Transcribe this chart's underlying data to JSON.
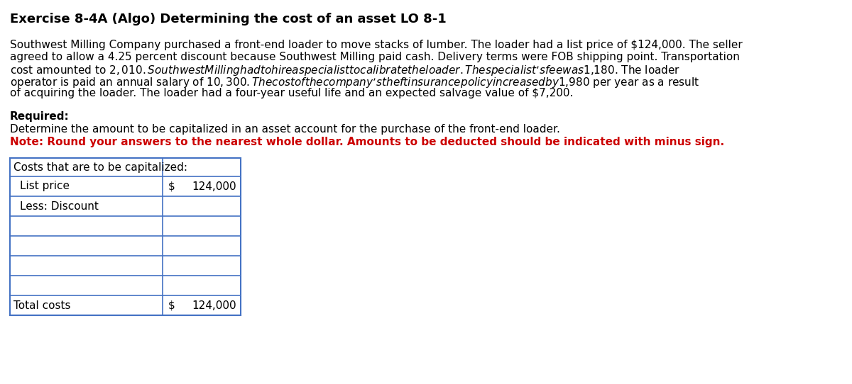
{
  "title": "Exercise 8-4A (Algo) Determining the cost of an asset LO 8-1",
  "para_lines": [
    "Southwest Milling Company purchased a front-end loader to move stacks of lumber. The loader had a list price of $124,000. The seller",
    "agreed to allow a 4.25 percent discount because Southwest Milling paid cash. Delivery terms were FOB shipping point. Transportation",
    "cost amounted to $2,010. Southwest Milling had to hire a specialist to calibrate the loader. The specialist’s fee was $1,180. The loader",
    "operator is paid an annual salary of $10,300. The cost of the company’s theft insurance policy increased by $1,980 per year as a result",
    "of acquiring the loader. The loader had a four-year useful life and an expected salvage value of $7,200."
  ],
  "required_label": "Required:",
  "required_text": "Determine the amount to be capitalized in an asset account for the purchase of the front-end loader.",
  "note_text": "Note: Round your answers to the nearest whole dollar. Amounts to be deducted should be indicated with minus sign.",
  "table_header": "Costs that are to be capitalized:",
  "table_rows": [
    {
      "label": "List price",
      "dollar": "$",
      "value": "124,000",
      "indent": true
    },
    {
      "label": "Less: Discount",
      "dollar": "",
      "value": "",
      "indent": true
    },
    {
      "label": "",
      "dollar": "",
      "value": "",
      "indent": false
    },
    {
      "label": "",
      "dollar": "",
      "value": "",
      "indent": false
    },
    {
      "label": "",
      "dollar": "",
      "value": "",
      "indent": false
    },
    {
      "label": "",
      "dollar": "",
      "value": "",
      "indent": false
    }
  ],
  "total_row": {
    "label": "Total costs",
    "dollar": "$",
    "value": "124,000"
  },
  "bg_color": "#ffffff",
  "text_color": "#000000",
  "note_color": "#cc0000",
  "table_border_color": "#4472c4",
  "title_fontsize": 13,
  "body_fontsize": 11,
  "table_fontsize": 11
}
